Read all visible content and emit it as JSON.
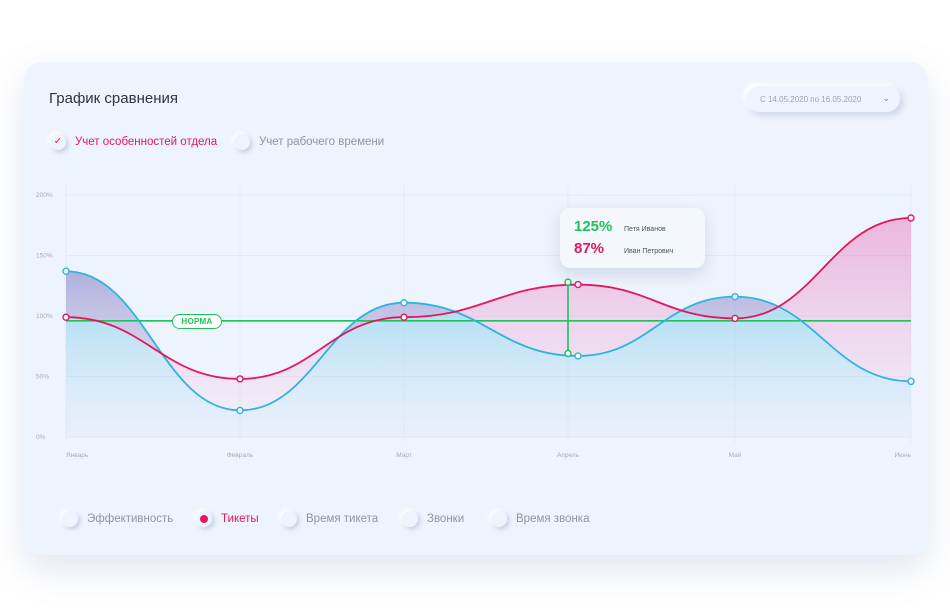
{
  "header": {
    "title": "График сравнения",
    "date_range": "С 14.05.2020 по 16.05.2020",
    "chevron_icon": "chevron-down-icon"
  },
  "filters": [
    {
      "label": "Учет особенностей отдела",
      "checked": true
    },
    {
      "label": "Учет рабочего времени",
      "checked": false
    }
  ],
  "metrics": [
    {
      "label": "Эффективность",
      "selected": false
    },
    {
      "label": "Тикеты",
      "selected": true
    },
    {
      "label": "Время тикета",
      "selected": false
    },
    {
      "label": "Звонки",
      "selected": false
    },
    {
      "label": "Время звонка",
      "selected": false
    }
  ],
  "tooltip": {
    "rows": [
      {
        "value": "125%",
        "name": "Петя Иванов",
        "color": "#1fc15a"
      },
      {
        "value": "87%",
        "name": "Иван Петрович",
        "color": "#e4175c"
      }
    ]
  },
  "colors": {
    "accent": "#e4175c",
    "blue": "#2cb5e0",
    "green": "#1fc15a"
  },
  "chart_data": {
    "type": "line",
    "categories": [
      "Январь",
      "Февраль",
      "Март",
      "Апрель",
      "Май",
      "Июнь"
    ],
    "x": [
      0,
      1,
      2,
      3,
      4,
      5
    ],
    "y_ticks": [
      "0%",
      "50%",
      "100%",
      "150%",
      "200%"
    ],
    "ylim": [
      0,
      200
    ],
    "grid": true,
    "norm": {
      "value": 96,
      "label": "НОРМА"
    },
    "series": [
      {
        "color": "#2cb5e0",
        "points": [
          [
            0,
            137
          ],
          [
            1,
            22
          ],
          [
            2,
            111
          ],
          [
            3.06,
            67
          ],
          [
            4,
            116
          ],
          [
            5,
            46
          ]
        ]
      },
      {
        "color": "#e4175c",
        "points": [
          [
            0,
            99
          ],
          [
            1,
            48
          ],
          [
            2,
            99
          ],
          [
            3.06,
            126
          ],
          [
            4,
            98
          ],
          [
            5,
            181
          ]
        ]
      }
    ],
    "marker": {
      "x": 3,
      "from": 69,
      "to": 128
    }
  }
}
